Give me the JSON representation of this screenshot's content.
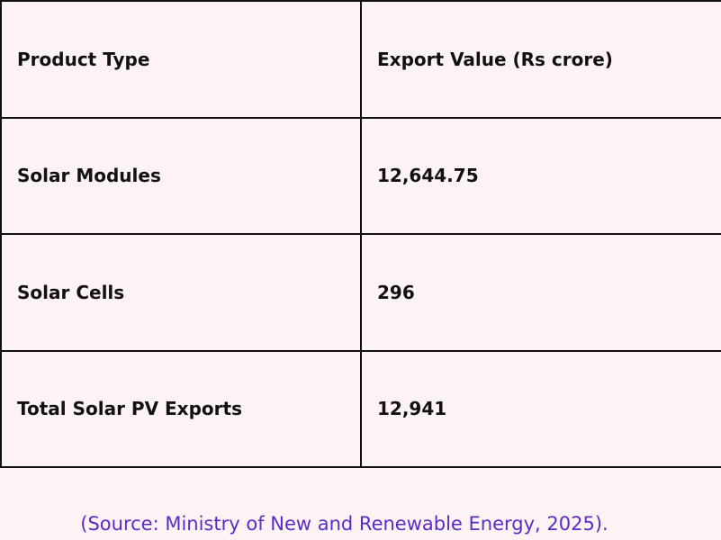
{
  "table": {
    "headers": [
      "Product Type",
      "Export Value (Rs crore)"
    ],
    "rows": [
      [
        "Solar Modules",
        "12,644.75"
      ],
      [
        "Solar Cells",
        "296"
      ],
      [
        "Total Solar PV Exports",
        "12,941"
      ]
    ]
  },
  "source": "(Source: Ministry of New and Renewable Energy, 2025).",
  "colors": {
    "background": "#fdf3f4",
    "border": "#111111",
    "source_text": "#5a2bc6"
  }
}
